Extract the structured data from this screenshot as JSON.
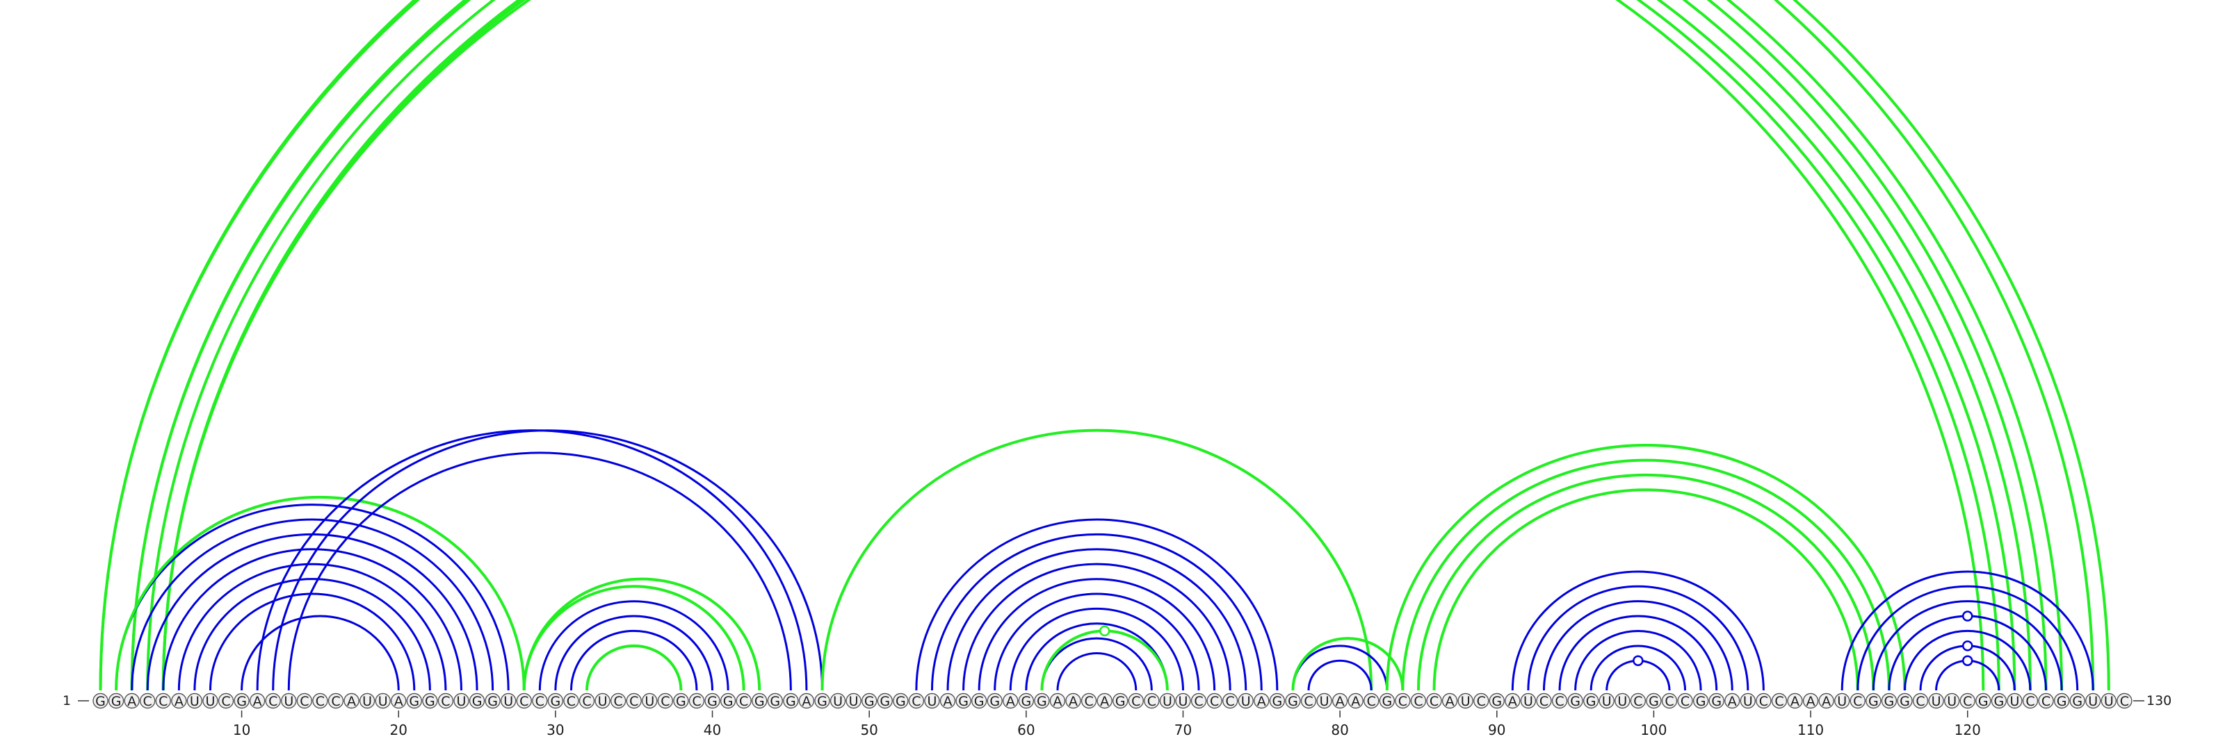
{
  "sequence": "GGACCAUUCGACUCCCAUUAGGCUGGUCCGCCUCCUCGCGGCGGGAGUUGGGCUAGGGAGGAACAGCCUUCCCUAGGCUAACGCCCAUCGAUCCGGUUCGCCGGAUCCAAAUCGGGCUUCGGUCCGGUUC",
  "start_label": "1",
  "end_label": "130",
  "ticks": [
    "10",
    "20",
    "30",
    "40",
    "50",
    "60",
    "70",
    "80",
    "90",
    "100",
    "110",
    "120"
  ],
  "colors": {
    "blue": "#0000dd",
    "green": "#22ee22"
  },
  "legend": [],
  "arc_sets": [
    {
      "color": "green",
      "pairs": [
        [
          1,
          129
        ],
        [
          1,
          128
        ],
        [
          3,
          126
        ],
        [
          3,
          125
        ],
        [
          4,
          124
        ],
        [
          5,
          123
        ],
        [
          5,
          122
        ],
        [
          5,
          121
        ]
      ]
    },
    {
      "color": "blue",
      "pairs": [
        [
          2,
          27
        ],
        [
          3,
          26
        ],
        [
          4,
          25
        ],
        [
          5,
          24
        ],
        [
          6,
          23
        ],
        [
          7,
          22
        ],
        [
          8,
          21
        ],
        [
          10,
          20
        ]
      ]
    },
    {
      "color": "green",
      "pairs": [
        [
          2,
          28
        ]
      ]
    },
    {
      "color": "blue",
      "pairs": [
        [
          11,
          46
        ],
        [
          12,
          47
        ],
        [
          13,
          45
        ]
      ]
    },
    {
      "color": "green",
      "pairs": [
        [
          28,
          43
        ],
        [
          28,
          42
        ]
      ]
    },
    {
      "color": "blue",
      "pairs": [
        [
          29,
          41
        ],
        [
          30,
          40
        ],
        [
          31,
          39
        ],
        [
          32,
          38
        ]
      ]
    },
    {
      "color": "green",
      "pairs": [
        [
          32,
          38
        ]
      ]
    },
    {
      "color": "green",
      "pairs": [
        [
          47,
          82
        ]
      ]
    },
    {
      "color": "blue",
      "pairs": [
        [
          53,
          76
        ],
        [
          54,
          75
        ],
        [
          55,
          74
        ],
        [
          56,
          73
        ],
        [
          57,
          72
        ],
        [
          58,
          71
        ],
        [
          59,
          70
        ],
        [
          60,
          69
        ],
        [
          61,
          68
        ],
        [
          62,
          67
        ]
      ]
    },
    {
      "color": "green",
      "pairs": [
        [
          61,
          69
        ]
      ]
    },
    {
      "color": "blue",
      "pairs": [
        [
          77,
          83
        ],
        [
          78,
          82
        ]
      ]
    },
    {
      "color": "green",
      "pairs": [
        [
          77,
          84
        ]
      ]
    },
    {
      "color": "green",
      "pairs": [
        [
          83,
          116
        ],
        [
          84,
          115
        ],
        [
          85,
          114
        ],
        [
          86,
          113
        ]
      ]
    },
    {
      "color": "blue",
      "pairs": [
        [
          91,
          107
        ],
        [
          92,
          106
        ],
        [
          93,
          105
        ],
        [
          94,
          104
        ],
        [
          95,
          103
        ],
        [
          96,
          102
        ],
        [
          97,
          101
        ]
      ]
    },
    {
      "color": "blue",
      "pairs": [
        [
          112,
          128
        ],
        [
          113,
          127
        ],
        [
          114,
          126
        ],
        [
          115,
          125
        ],
        [
          116,
          124
        ],
        [
          117,
          123
        ],
        [
          118,
          122
        ]
      ]
    }
  ],
  "markers": [
    {
      "color": "green",
      "position": 65.5,
      "level": "top-arc"
    },
    {
      "color": "green",
      "position": 64.8,
      "level": "small-arc"
    },
    {
      "color": "blue",
      "position": 99,
      "level": "inner-hairpin"
    },
    {
      "color": "blue",
      "position": 120,
      "level": "hairpin-1"
    },
    {
      "color": "blue",
      "position": 120,
      "level": "hairpin-2"
    },
    {
      "color": "blue",
      "position": 120,
      "level": "hairpin-3"
    }
  ]
}
